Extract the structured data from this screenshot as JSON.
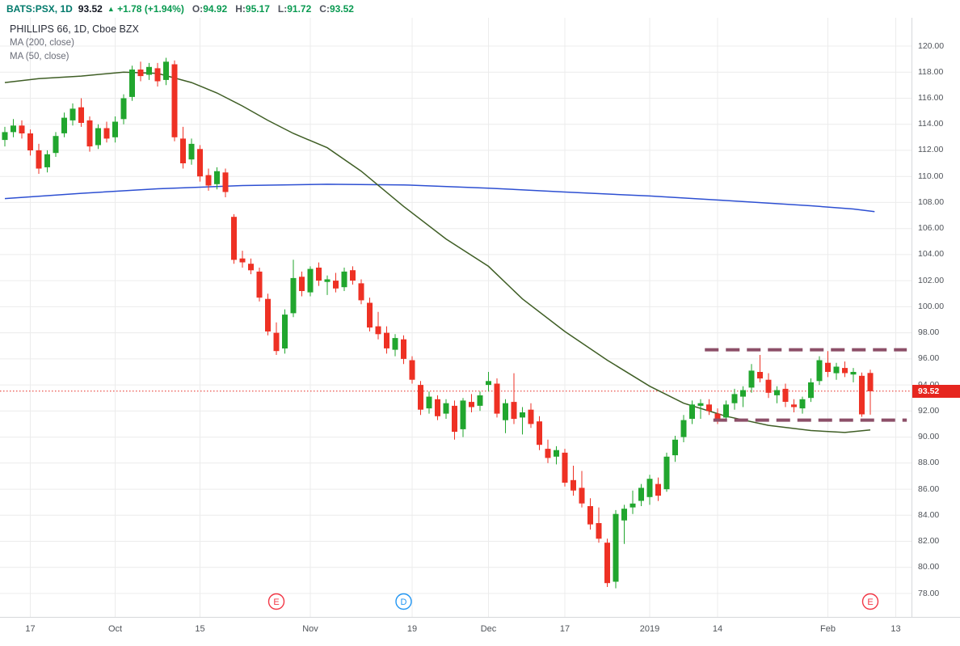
{
  "header": {
    "symbol": "BATS:PSX, 1D",
    "last_price": "93.52",
    "arrow": "▲",
    "change": "+1.78",
    "change_pct": "(+1.94%)",
    "ohlc": [
      {
        "label": "O:",
        "value": "94.92"
      },
      {
        "label": "H:",
        "value": "95.17"
      },
      {
        "label": "L:",
        "value": "91.72"
      },
      {
        "label": "C:",
        "value": "93.52"
      }
    ]
  },
  "legend": {
    "title": "PHILLIPS 66, 1D, Cboe BZX",
    "indicators": [
      "MA (200, close)",
      "MA (50, close)"
    ]
  },
  "chart_data": {
    "type": "candlestick",
    "title": "PHILLIPS 66, 1D, Cboe BZX",
    "symbol": "BATS:PSX",
    "timeframe": "1D",
    "y_min": 78,
    "y_max": 120,
    "y_step": 2,
    "last_price": 93.52,
    "last_price_label": "93.52",
    "grid": true,
    "colors": {
      "up": "#21a62e",
      "down": "#ee3124",
      "ma200": "#2d4fd2",
      "ma50": "#3f5e25",
      "level": "#8c4f68",
      "price_line": "#e6261f",
      "grid": "#ececec"
    },
    "x_labels": [
      {
        "i": 3,
        "text": "17"
      },
      {
        "i": 13,
        "text": "Oct"
      },
      {
        "i": 23,
        "text": "15"
      },
      {
        "i": 36,
        "text": "Nov"
      },
      {
        "i": 48,
        "text": "19"
      },
      {
        "i": 57,
        "text": "Dec"
      },
      {
        "i": 66,
        "text": "17"
      },
      {
        "i": 76,
        "text": "2019"
      },
      {
        "i": 84,
        "text": "14"
      },
      {
        "i": 97,
        "text": "Feb"
      },
      {
        "i": 105,
        "text": "13"
      }
    ],
    "candles": [
      [
        112.8,
        113.8,
        112.3,
        113.4
      ],
      [
        113.4,
        114.4,
        113.0,
        113.9
      ],
      [
        113.9,
        114.3,
        112.9,
        113.3
      ],
      [
        113.3,
        113.6,
        111.6,
        112.0
      ],
      [
        112.0,
        112.5,
        110.2,
        110.6
      ],
      [
        110.7,
        112.0,
        110.3,
        111.7
      ],
      [
        111.8,
        113.4,
        111.5,
        113.1
      ],
      [
        113.3,
        114.9,
        113.0,
        114.5
      ],
      [
        114.3,
        115.6,
        113.9,
        115.2
      ],
      [
        115.3,
        116.0,
        113.8,
        114.1
      ],
      [
        114.3,
        114.6,
        111.9,
        112.3
      ],
      [
        112.4,
        114.0,
        112.1,
        113.7
      ],
      [
        113.7,
        114.2,
        112.6,
        112.9
      ],
      [
        113.0,
        114.6,
        112.6,
        114.2
      ],
      [
        114.4,
        116.3,
        114.0,
        116.0
      ],
      [
        116.1,
        118.5,
        115.8,
        118.2
      ],
      [
        118.2,
        118.8,
        117.3,
        117.7
      ],
      [
        117.8,
        118.7,
        117.4,
        118.4
      ],
      [
        118.3,
        118.7,
        116.9,
        117.3
      ],
      [
        117.4,
        119.1,
        117.0,
        118.8
      ],
      [
        118.6,
        118.9,
        112.7,
        113.0
      ],
      [
        112.9,
        113.8,
        110.6,
        111.0
      ],
      [
        111.3,
        112.9,
        110.9,
        112.5
      ],
      [
        112.1,
        112.4,
        109.6,
        110.0
      ],
      [
        110.1,
        110.6,
        108.9,
        109.3
      ],
      [
        109.4,
        110.7,
        109.0,
        110.4
      ],
      [
        110.3,
        110.6,
        108.4,
        108.8
      ],
      [
        106.9,
        107.1,
        103.3,
        103.6
      ],
      [
        103.7,
        104.3,
        103.0,
        103.4
      ],
      [
        103.3,
        103.7,
        102.5,
        102.8
      ],
      [
        102.7,
        103.0,
        100.4,
        100.7
      ],
      [
        100.6,
        101.0,
        97.8,
        98.1
      ],
      [
        98.0,
        98.8,
        96.3,
        96.6
      ],
      [
        96.8,
        99.8,
        96.4,
        99.4
      ],
      [
        99.5,
        103.6,
        99.2,
        102.2
      ],
      [
        102.3,
        102.7,
        100.8,
        101.2
      ],
      [
        101.1,
        103.1,
        100.8,
        102.9
      ],
      [
        103.0,
        103.4,
        101.6,
        102.0
      ],
      [
        101.9,
        102.4,
        100.9,
        102.1
      ],
      [
        102.0,
        102.6,
        101.1,
        101.4
      ],
      [
        101.5,
        103.0,
        101.2,
        102.7
      ],
      [
        102.8,
        103.1,
        101.7,
        102.0
      ],
      [
        101.8,
        102.1,
        100.2,
        100.5
      ],
      [
        100.3,
        100.7,
        98.1,
        98.4
      ],
      [
        98.5,
        99.6,
        97.5,
        97.9
      ],
      [
        98.0,
        98.5,
        96.4,
        96.8
      ],
      [
        96.7,
        97.9,
        96.2,
        97.6
      ],
      [
        97.5,
        97.8,
        95.6,
        96.0
      ],
      [
        95.9,
        96.2,
        94.1,
        94.4
      ],
      [
        94.0,
        94.3,
        91.7,
        92.1
      ],
      [
        92.2,
        93.5,
        91.8,
        93.1
      ],
      [
        92.9,
        93.2,
        91.3,
        91.6
      ],
      [
        91.8,
        92.9,
        91.4,
        92.6
      ],
      [
        92.4,
        92.8,
        89.8,
        90.4
      ],
      [
        90.6,
        93.0,
        90.0,
        92.8
      ],
      [
        92.7,
        93.3,
        91.9,
        92.3
      ],
      [
        92.4,
        93.5,
        92.0,
        93.2
      ],
      [
        94.0,
        95.0,
        93.5,
        94.3
      ],
      [
        94.1,
        94.5,
        91.5,
        91.8
      ],
      [
        91.3,
        92.9,
        90.3,
        92.6
      ],
      [
        92.7,
        94.9,
        91.0,
        91.4
      ],
      [
        91.5,
        92.3,
        90.2,
        91.9
      ],
      [
        92.1,
        92.6,
        90.7,
        91.0
      ],
      [
        91.2,
        91.6,
        89.0,
        89.4
      ],
      [
        89.1,
        89.8,
        88.0,
        88.4
      ],
      [
        88.5,
        89.3,
        87.9,
        89.0
      ],
      [
        88.8,
        89.1,
        86.2,
        86.5
      ],
      [
        86.7,
        87.8,
        85.5,
        85.9
      ],
      [
        86.1,
        87.4,
        84.6,
        84.9
      ],
      [
        84.7,
        85.3,
        82.9,
        83.3
      ],
      [
        83.4,
        84.6,
        81.9,
        82.2
      ],
      [
        81.9,
        82.2,
        78.5,
        78.8
      ],
      [
        78.9,
        84.4,
        78.4,
        84.1
      ],
      [
        83.6,
        84.8,
        81.8,
        84.5
      ],
      [
        84.6,
        85.9,
        84.1,
        84.9
      ],
      [
        85.1,
        86.4,
        84.7,
        86.1
      ],
      [
        85.4,
        87.1,
        84.8,
        86.8
      ],
      [
        86.4,
        86.9,
        85.1,
        85.5
      ],
      [
        86.0,
        88.8,
        85.8,
        88.5
      ],
      [
        88.6,
        90.1,
        88.1,
        89.8
      ],
      [
        90.0,
        91.7,
        89.6,
        91.3
      ],
      [
        91.4,
        92.8,
        91.0,
        92.5
      ],
      [
        92.4,
        92.9,
        91.4,
        92.6
      ],
      [
        92.5,
        92.9,
        91.7,
        92.0
      ],
      [
        91.8,
        92.2,
        91.0,
        91.4
      ],
      [
        91.5,
        92.8,
        91.2,
        92.5
      ],
      [
        92.6,
        93.7,
        92.1,
        93.3
      ],
      [
        93.1,
        93.9,
        92.3,
        93.6
      ],
      [
        93.8,
        95.6,
        93.4,
        95.1
      ],
      [
        95.0,
        96.3,
        94.2,
        94.5
      ],
      [
        94.4,
        94.9,
        93.0,
        93.4
      ],
      [
        93.2,
        93.9,
        92.6,
        93.6
      ],
      [
        93.7,
        94.1,
        92.3,
        92.7
      ],
      [
        92.5,
        92.9,
        91.9,
        92.3
      ],
      [
        92.2,
        93.1,
        91.8,
        92.9
      ],
      [
        93.0,
        94.5,
        92.7,
        94.2
      ],
      [
        94.3,
        96.2,
        94.0,
        95.9
      ],
      [
        95.7,
        96.6,
        94.6,
        95.0
      ],
      [
        94.9,
        95.7,
        94.4,
        95.4
      ],
      [
        95.3,
        95.8,
        94.6,
        94.9
      ],
      [
        94.8,
        95.3,
        94.2,
        95.0
      ],
      [
        94.7,
        94.95,
        91.55,
        91.74
      ],
      [
        94.92,
        95.17,
        91.72,
        93.52
      ]
    ],
    "ma200": {
      "name": "MA (200, close)",
      "points": [
        [
          0,
          108.3
        ],
        [
          9,
          108.7
        ],
        [
          18,
          109.05
        ],
        [
          28,
          109.3
        ],
        [
          38,
          109.4
        ],
        [
          47,
          109.35
        ],
        [
          57,
          109.1
        ],
        [
          66,
          108.8
        ],
        [
          76,
          108.5
        ],
        [
          85,
          108.15
        ],
        [
          95,
          107.75
        ],
        [
          100,
          107.5
        ],
        [
          102.5,
          107.3
        ]
      ]
    },
    "ma50": {
      "name": "MA (50, close)",
      "points": [
        [
          0,
          117.2
        ],
        [
          4,
          117.5
        ],
        [
          9,
          117.7
        ],
        [
          14,
          118.0
        ],
        [
          18,
          117.9
        ],
        [
          22,
          117.2
        ],
        [
          25,
          116.4
        ],
        [
          28,
          115.4
        ],
        [
          31,
          114.3
        ],
        [
          34,
          113.3
        ],
        [
          38,
          112.2
        ],
        [
          42,
          110.4
        ],
        [
          47,
          107.7
        ],
        [
          52,
          105.2
        ],
        [
          57,
          103.1
        ],
        [
          61,
          100.6
        ],
        [
          66,
          98.1
        ],
        [
          71,
          95.9
        ],
        [
          76,
          93.9
        ],
        [
          80,
          92.6
        ],
        [
          85,
          91.6
        ],
        [
          90,
          90.9
        ],
        [
          95,
          90.5
        ],
        [
          99,
          90.35
        ],
        [
          102,
          90.55
        ]
      ]
    },
    "levels": [
      {
        "price": 96.7,
        "from_i": 82.5,
        "to_i": 106.3
      },
      {
        "price": 91.3,
        "from_i": 83.5,
        "to_i": 106.3
      }
    ],
    "markers": [
      {
        "i": 32,
        "label": "E",
        "type": "earnings",
        "color": "#f23645"
      },
      {
        "i": 47,
        "label": "D",
        "type": "dividend",
        "color": "#2196f3"
      },
      {
        "i": 102,
        "label": "E",
        "type": "earnings",
        "color": "#f23645"
      }
    ]
  }
}
